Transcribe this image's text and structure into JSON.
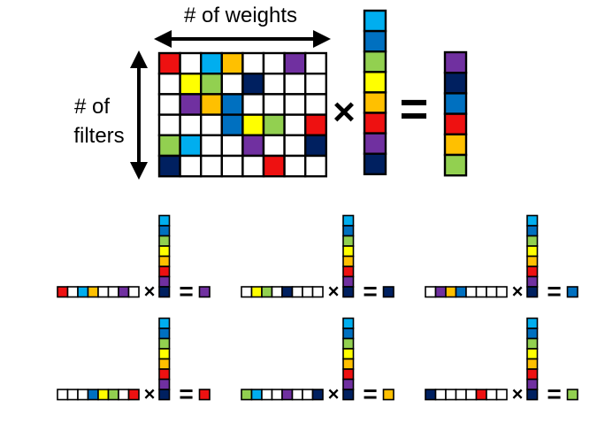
{
  "labels": {
    "weights": "# of weights",
    "filters_line1": "# of",
    "filters_line2": "filters",
    "times": "×",
    "equals": "="
  },
  "colors": {
    "W": "#ffffff",
    "R": "#ee1111",
    "C": "#00aeef",
    "O": "#ffc000",
    "P": "#7030a0",
    "Y": "#ffff00",
    "G": "#92d050",
    "B": "#0070c0",
    "N": "#002060"
  },
  "matrix": [
    [
      "R",
      "W",
      "C",
      "O",
      "W",
      "W",
      "P",
      "W"
    ],
    [
      "W",
      "Y",
      "G",
      "W",
      "N",
      "W",
      "W",
      "W"
    ],
    [
      "W",
      "P",
      "O",
      "B",
      "W",
      "W",
      "W",
      "W"
    ],
    [
      "W",
      "W",
      "W",
      "B",
      "Y",
      "G",
      "W",
      "R"
    ],
    [
      "G",
      "C",
      "W",
      "W",
      "P",
      "W",
      "W",
      "N"
    ],
    [
      "N",
      "W",
      "W",
      "W",
      "W",
      "R",
      "W",
      "W"
    ]
  ],
  "input_vector": [
    "C",
    "B",
    "G",
    "Y",
    "O",
    "R",
    "P",
    "N"
  ],
  "output_vector": [
    "P",
    "N",
    "B",
    "R",
    "O",
    "G"
  ]
}
